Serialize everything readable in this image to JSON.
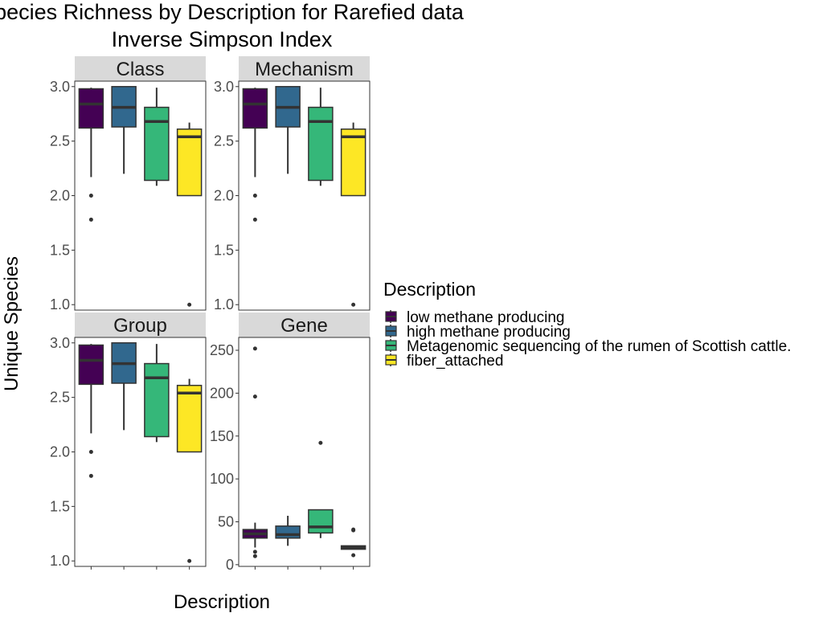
{
  "chart_data": {
    "type": "box",
    "title_lines": [
      "Species Richness by Description for Rarefied data",
      "Inverse Simpson Index"
    ],
    "xlabel": "Description",
    "ylabel": "Unique Species",
    "categories": [
      "low methane producing",
      "high methane producing",
      "Metagenomic sequencing of the rumen of Scottish cattle.",
      "fiber_attached"
    ],
    "colors": [
      "#440154",
      "#31688e",
      "#35b779",
      "#fde725"
    ],
    "grid": false,
    "legend": {
      "title": "Description",
      "position": "right"
    },
    "facets": [
      {
        "label": "Class",
        "ylim": [
          0.95,
          3.05
        ],
        "yticks": [
          1.0,
          1.5,
          2.0,
          2.5,
          3.0
        ],
        "ytick_labels": [
          "1.0",
          "1.5",
          "2.0",
          "2.5",
          "3.0"
        ],
        "boxes": [
          {
            "min": 2.17,
            "q1": 2.62,
            "median": 2.84,
            "q3": 2.98,
            "max": 2.99,
            "outliers": [
              2.0,
              1.78
            ]
          },
          {
            "min": 2.2,
            "q1": 2.63,
            "median": 2.81,
            "q3": 3.0,
            "max": 3.0,
            "outliers": []
          },
          {
            "min": 2.09,
            "q1": 2.14,
            "median": 2.68,
            "q3": 2.81,
            "max": 2.99,
            "outliers": []
          },
          {
            "min": 2.0,
            "q1": 2.0,
            "median": 2.54,
            "q3": 2.61,
            "max": 2.67,
            "outliers": [
              1.0
            ]
          }
        ]
      },
      {
        "label": "Mechanism",
        "ylim": [
          0.95,
          3.05
        ],
        "yticks": [
          1.0,
          1.5,
          2.0,
          2.5,
          3.0
        ],
        "ytick_labels": [
          "1.0",
          "1.5",
          "2.0",
          "2.5",
          "3.0"
        ],
        "boxes": [
          {
            "min": 2.17,
            "q1": 2.62,
            "median": 2.84,
            "q3": 2.98,
            "max": 2.99,
            "outliers": [
              2.0,
              1.78
            ]
          },
          {
            "min": 2.2,
            "q1": 2.63,
            "median": 2.81,
            "q3": 3.0,
            "max": 3.0,
            "outliers": []
          },
          {
            "min": 2.09,
            "q1": 2.14,
            "median": 2.68,
            "q3": 2.81,
            "max": 2.99,
            "outliers": []
          },
          {
            "min": 2.0,
            "q1": 2.0,
            "median": 2.54,
            "q3": 2.61,
            "max": 2.67,
            "outliers": [
              1.0
            ]
          }
        ]
      },
      {
        "label": "Group",
        "ylim": [
          0.95,
          3.05
        ],
        "yticks": [
          1.0,
          1.5,
          2.0,
          2.5,
          3.0
        ],
        "ytick_labels": [
          "1.0",
          "1.5",
          "2.0",
          "2.5",
          "3.0"
        ],
        "boxes": [
          {
            "min": 2.17,
            "q1": 2.62,
            "median": 2.84,
            "q3": 2.98,
            "max": 2.99,
            "outliers": [
              2.0,
              1.78
            ]
          },
          {
            "min": 2.2,
            "q1": 2.63,
            "median": 2.81,
            "q3": 3.0,
            "max": 3.0,
            "outliers": []
          },
          {
            "min": 2.09,
            "q1": 2.14,
            "median": 2.68,
            "q3": 2.81,
            "max": 2.99,
            "outliers": []
          },
          {
            "min": 2.0,
            "q1": 2.0,
            "median": 2.54,
            "q3": 2.61,
            "max": 2.67,
            "outliers": [
              1.0
            ]
          }
        ]
      },
      {
        "label": "Gene",
        "ylim": [
          -2,
          265
        ],
        "yticks": [
          0,
          50,
          100,
          150,
          200,
          250
        ],
        "ytick_labels": [
          "0",
          "50",
          "100",
          "150",
          "200",
          "250"
        ],
        "boxes": [
          {
            "min": 20,
            "q1": 31,
            "median": 36,
            "q3": 41,
            "max": 49,
            "outliers": [
              252,
              196,
              15,
              10
            ]
          },
          {
            "min": 22,
            "q1": 31,
            "median": 35,
            "q3": 45,
            "max": 57,
            "outliers": []
          },
          {
            "min": 31,
            "q1": 37,
            "median": 44,
            "q3": 64,
            "max": 64,
            "outliers": [
              142
            ]
          },
          {
            "min": 18,
            "q1": 18,
            "median": 20,
            "q3": 22,
            "max": 22,
            "outliers": [
              40,
              41,
              11
            ]
          }
        ]
      }
    ]
  }
}
